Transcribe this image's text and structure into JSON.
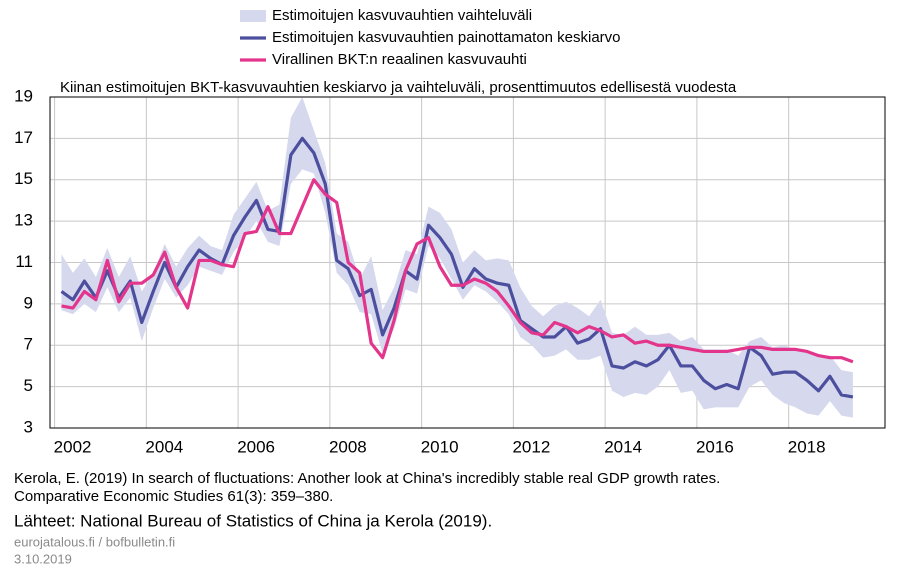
{
  "chart_data": {
    "type": "line",
    "title": "Kiinan estimoitujen BKT-kasvuvauhtien keskiarvo ja vaihteluväli, prosenttimuutos edellisestä vuodesta",
    "x": [
      2002.15,
      2002.4,
      2002.65,
      2002.9,
      2003.15,
      2003.4,
      2003.65,
      2003.9,
      2004.15,
      2004.4,
      2004.65,
      2004.9,
      2005.15,
      2005.4,
      2005.65,
      2005.9,
      2006.15,
      2006.4,
      2006.65,
      2006.9,
      2007.15,
      2007.4,
      2007.65,
      2007.9,
      2008.15,
      2008.4,
      2008.65,
      2008.9,
      2009.15,
      2009.4,
      2009.65,
      2009.9,
      2010.15,
      2010.4,
      2010.65,
      2010.9,
      2011.15,
      2011.4,
      2011.65,
      2011.9,
      2012.15,
      2012.4,
      2012.65,
      2012.9,
      2013.15,
      2013.4,
      2013.65,
      2013.9,
      2014.15,
      2014.4,
      2014.65,
      2014.9,
      2015.15,
      2015.4,
      2015.65,
      2015.9,
      2016.15,
      2016.4,
      2016.65,
      2016.9,
      2017.15,
      2017.4,
      2017.65,
      2017.9,
      2018.15,
      2018.4,
      2018.65,
      2018.9,
      2019.15,
      2019.4
    ],
    "series": [
      {
        "name": "Estimoitujen kasvuvauhtien vaihteluväli",
        "kind": "band",
        "color": "#d6d8ee",
        "low": [
          8.7,
          8.5,
          9.0,
          8.6,
          9.8,
          8.6,
          9.3,
          7.2,
          8.8,
          10.2,
          9.3,
          9.9,
          10.8,
          10.6,
          10.4,
          11.5,
          12.2,
          13.0,
          12.0,
          11.8,
          14.8,
          15.5,
          15.3,
          13.4,
          10.5,
          9.9,
          8.6,
          8.5,
          6.6,
          7.8,
          9.7,
          9.5,
          11.8,
          11.2,
          10.2,
          9.2,
          9.9,
          9.6,
          9.1,
          8.5,
          7.4,
          7.0,
          6.4,
          6.5,
          6.8,
          6.3,
          6.3,
          6.5,
          4.8,
          4.5,
          4.7,
          4.6,
          5.0,
          5.8,
          4.7,
          4.8,
          3.9,
          4.0,
          4.0,
          4.0,
          5.0,
          5.3,
          4.6,
          4.2,
          4.0,
          3.7,
          3.6,
          4.3,
          3.6,
          3.5
        ],
        "high": [
          11.4,
          10.5,
          11.2,
          10.3,
          11.7,
          10.3,
          11.3,
          9.6,
          10.5,
          11.9,
          10.8,
          11.7,
          12.3,
          11.8,
          11.6,
          13.3,
          14.1,
          14.9,
          13.5,
          13.8,
          18.0,
          19.0,
          17.4,
          15.8,
          12.4,
          12.0,
          10.2,
          11.3,
          8.7,
          9.8,
          11.6,
          11.4,
          13.7,
          13.4,
          12.6,
          11.0,
          11.6,
          11.1,
          11.2,
          11.1,
          9.8,
          8.9,
          8.4,
          8.9,
          9.1,
          8.8,
          8.4,
          9.2,
          7.6,
          7.5,
          7.9,
          7.5,
          7.5,
          7.6,
          7.2,
          7.4,
          6.8,
          6.8,
          6.8,
          6.5,
          7.2,
          7.4,
          6.9,
          7.0,
          6.8,
          6.7,
          6.5,
          6.5,
          5.8,
          5.7
        ]
      },
      {
        "name": "Estimoitujen kasvuvauhtien painottamaton keskiarvo",
        "color": "#4b4f9e",
        "values": [
          9.6,
          9.2,
          10.1,
          9.3,
          10.6,
          9.3,
          10.1,
          8.1,
          9.6,
          11.0,
          9.8,
          10.8,
          11.6,
          11.2,
          10.9,
          12.3,
          13.2,
          14.0,
          12.6,
          12.5,
          16.2,
          17.0,
          16.3,
          14.8,
          11.1,
          10.7,
          9.4,
          9.7,
          7.5,
          8.8,
          10.6,
          10.2,
          12.8,
          12.2,
          11.4,
          9.8,
          10.7,
          10.2,
          10.0,
          9.9,
          8.2,
          7.8,
          7.4,
          7.4,
          7.9,
          7.1,
          7.3,
          7.8,
          6.0,
          5.9,
          6.2,
          6.0,
          6.3,
          7.0,
          6.0,
          6.0,
          5.3,
          4.9,
          5.1,
          4.9,
          6.9,
          6.5,
          5.6,
          5.7,
          5.7,
          5.3,
          4.8,
          5.5,
          4.6,
          4.5
        ]
      },
      {
        "name": "Virallinen BKT:n reaalinen kasvuvauhti",
        "color": "#e2358b",
        "values": [
          8.9,
          8.8,
          9.6,
          9.2,
          11.1,
          9.1,
          10.0,
          10.0,
          10.4,
          11.5,
          9.8,
          8.8,
          11.1,
          11.1,
          10.9,
          10.8,
          12.4,
          12.5,
          13.7,
          12.4,
          12.4,
          13.7,
          15.0,
          14.3,
          13.9,
          11.0,
          10.5,
          7.1,
          6.4,
          8.2,
          10.6,
          11.9,
          12.2,
          10.8,
          9.9,
          9.9,
          10.2,
          10.0,
          9.6,
          8.9,
          8.1,
          7.6,
          7.5,
          8.1,
          7.9,
          7.6,
          7.9,
          7.7,
          7.4,
          7.5,
          7.1,
          7.2,
          7.0,
          7.0,
          6.9,
          6.8,
          6.7,
          6.7,
          6.7,
          6.8,
          6.9,
          6.9,
          6.8,
          6.8,
          6.8,
          6.7,
          6.5,
          6.4,
          6.4,
          6.2
        ]
      }
    ],
    "xlim": [
      2001.9,
      2020.1
    ],
    "xticks": [
      2002,
      2004,
      2006,
      2008,
      2010,
      2012,
      2014,
      2016,
      2018
    ],
    "ylim": [
      3,
      19
    ],
    "yticks": [
      3,
      5,
      7,
      9,
      11,
      13,
      15,
      17,
      19
    ],
    "grid": true,
    "source": {
      "citation": [
        "Kerola, E. (2019) In search of fluctuations: Another look at China's incredibly stable real GDP growth rates.",
        "Comparative Economic Studies 61(3): 359–380."
      ],
      "sources": "Lähteet: National Bureau of Statistics of China ja Kerola (2019).",
      "site": "eurojatalous.fi / bofbulletin.fi",
      "date": "3.10.2019"
    }
  }
}
